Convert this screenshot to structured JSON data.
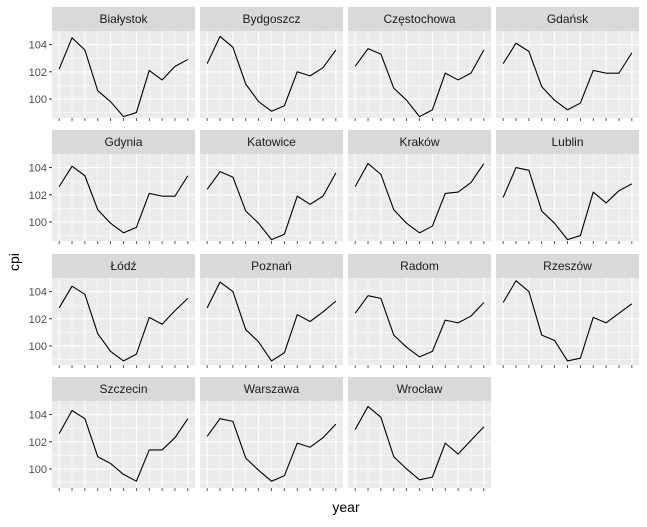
{
  "chart_data": {
    "type": "line",
    "facet_layout": "wrap-4-columns",
    "xlabel": "year",
    "ylabel": "cpi",
    "ylim": [
      98.6,
      105.0
    ],
    "y_ticks": [
      100,
      102,
      104
    ],
    "y_tick_labels": [
      "100",
      "102",
      "104"
    ],
    "x_tick_labels_shown": false,
    "grid": true,
    "panel_background": "#ebebeb",
    "strip_background": "#d9d9d9",
    "gridline_color": "#ffffff",
    "line_color": "#000000",
    "tick_label_color": "#4d4d4d",
    "facets": [
      {
        "name": "Białystok",
        "values": [
          102.2,
          104.5,
          103.6,
          100.6,
          99.8,
          98.7,
          99.0,
          102.1,
          101.4,
          102.4,
          102.9
        ]
      },
      {
        "name": "Bydgoszcz",
        "values": [
          102.6,
          104.6,
          103.8,
          101.1,
          99.8,
          99.1,
          99.5,
          102.0,
          101.7,
          102.3,
          103.6
        ]
      },
      {
        "name": "Częstochowa",
        "values": [
          102.4,
          103.7,
          103.3,
          100.8,
          99.9,
          98.7,
          99.2,
          101.9,
          101.4,
          101.9,
          103.6
        ]
      },
      {
        "name": "Gdańsk",
        "values": [
          102.6,
          104.1,
          103.5,
          100.9,
          99.9,
          99.2,
          99.7,
          102.1,
          101.9,
          101.9,
          103.4
        ]
      },
      {
        "name": "Gdynia",
        "values": [
          102.6,
          104.1,
          103.4,
          100.9,
          99.9,
          99.2,
          99.6,
          102.1,
          101.9,
          101.9,
          103.4
        ]
      },
      {
        "name": "Katowice",
        "values": [
          102.4,
          103.7,
          103.3,
          100.8,
          99.9,
          98.7,
          99.1,
          101.9,
          101.3,
          101.9,
          103.6
        ]
      },
      {
        "name": "Kraków",
        "values": [
          102.6,
          104.3,
          103.5,
          100.9,
          99.9,
          99.2,
          99.7,
          102.1,
          102.2,
          102.9,
          104.3
        ]
      },
      {
        "name": "Lublin",
        "values": [
          101.8,
          104.0,
          103.8,
          100.8,
          99.9,
          98.7,
          99.0,
          102.2,
          101.4,
          102.3,
          102.8
        ]
      },
      {
        "name": "Łódź",
        "values": [
          102.8,
          104.4,
          103.8,
          100.9,
          99.6,
          98.9,
          99.4,
          102.1,
          101.6,
          102.6,
          103.5
        ]
      },
      {
        "name": "Poznań",
        "values": [
          102.8,
          104.7,
          104.0,
          101.2,
          100.3,
          98.9,
          99.5,
          102.3,
          101.8,
          102.5,
          103.3
        ]
      },
      {
        "name": "Radom",
        "values": [
          102.4,
          103.7,
          103.5,
          100.8,
          99.9,
          99.2,
          99.6,
          101.9,
          101.7,
          102.2,
          103.2
        ]
      },
      {
        "name": "Rzeszów",
        "values": [
          103.2,
          104.8,
          104.0,
          100.8,
          100.4,
          98.9,
          99.1,
          102.1,
          101.7,
          102.4,
          103.1
        ]
      },
      {
        "name": "Szczecin",
        "values": [
          102.6,
          104.3,
          103.7,
          100.9,
          100.4,
          99.6,
          99.1,
          101.4,
          101.4,
          102.3,
          103.7
        ]
      },
      {
        "name": "Warszawa",
        "values": [
          102.4,
          103.7,
          103.5,
          100.8,
          99.9,
          99.1,
          99.5,
          101.9,
          101.6,
          102.3,
          103.3
        ]
      },
      {
        "name": "Wrocław",
        "values": [
          102.9,
          104.6,
          103.8,
          100.9,
          100.0,
          99.2,
          99.4,
          101.9,
          101.1,
          102.1,
          103.1
        ]
      }
    ]
  }
}
